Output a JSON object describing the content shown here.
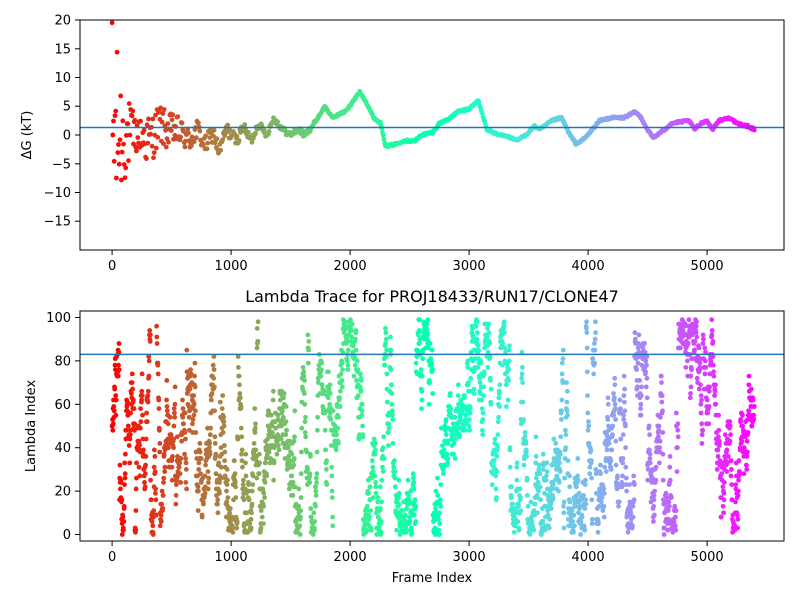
{
  "chart_data": [
    {
      "type": "scatter",
      "title": "",
      "xlabel": "",
      "ylabel": "ΔG (kT)",
      "xlim": [
        -270,
        5650
      ],
      "ylim": [
        -20,
        20
      ],
      "xticks": [
        "0",
        "1000",
        "2000",
        "3000",
        "4000",
        "5000"
      ],
      "yticks": [
        "−15",
        "−10",
        "−5",
        "0",
        "5",
        "10",
        "15",
        "20"
      ],
      "reference_line": 1.3,
      "reference_color": "#1f77b4",
      "colormap": "rainbow (red at frame 0 to violet at frame 5400)",
      "frames": 5400,
      "trace_anchors": [
        [
          240,
          0
        ],
        [
          320,
          -1
        ],
        [
          400,
          2
        ],
        [
          470,
          0.5
        ],
        [
          520,
          1
        ],
        [
          600,
          0
        ],
        [
          650,
          -1
        ],
        [
          720,
          1
        ],
        [
          780,
          -2
        ],
        [
          850,
          0.5
        ],
        [
          900,
          -3
        ],
        [
          960,
          1
        ],
        [
          1050,
          -1
        ],
        [
          1100,
          1.5
        ],
        [
          1170,
          -1
        ],
        [
          1230,
          2
        ],
        [
          1300,
          0
        ],
        [
          1360,
          3
        ],
        [
          1430,
          1
        ],
        [
          1500,
          0
        ],
        [
          1560,
          1
        ],
        [
          1620,
          0
        ],
        [
          1700,
          2
        ],
        [
          1790,
          5
        ],
        [
          1850,
          3
        ],
        [
          1950,
          4
        ],
        [
          2000,
          5
        ],
        [
          2080,
          7.5
        ],
        [
          2130,
          6
        ],
        [
          2200,
          3
        ],
        [
          2260,
          2
        ],
        [
          2300,
          -2
        ],
        [
          2400,
          -1.5
        ],
        [
          2450,
          -1
        ],
        [
          2550,
          -1
        ],
        [
          2600,
          0
        ],
        [
          2700,
          0.5
        ],
        [
          2750,
          2
        ],
        [
          2850,
          3
        ],
        [
          2900,
          4
        ],
        [
          3000,
          4.5
        ],
        [
          3080,
          6
        ],
        [
          3150,
          1
        ],
        [
          3250,
          0
        ],
        [
          3300,
          0
        ],
        [
          3400,
          -1
        ],
        [
          3480,
          0
        ],
        [
          3550,
          1.5
        ],
        [
          3600,
          1
        ],
        [
          3700,
          2.5
        ],
        [
          3780,
          3
        ],
        [
          3850,
          0
        ],
        [
          3900,
          -1.5
        ],
        [
          3950,
          -1
        ],
        [
          4000,
          0
        ],
        [
          4100,
          2.5
        ],
        [
          4200,
          3
        ],
        [
          4300,
          3
        ],
        [
          4400,
          4
        ],
        [
          4450,
          3
        ],
        [
          4500,
          1
        ],
        [
          4550,
          -0.5
        ],
        [
          4650,
          1
        ],
        [
          4700,
          2
        ],
        [
          4850,
          2.5
        ],
        [
          4900,
          1
        ],
        [
          4950,
          2
        ],
        [
          5000,
          2.5
        ],
        [
          5050,
          1
        ],
        [
          5100,
          2.5
        ],
        [
          5200,
          3
        ],
        [
          5250,
          2
        ],
        [
          5350,
          1.5
        ],
        [
          5400,
          1
        ]
      ]
    },
    {
      "type": "scatter",
      "title": "Lambda Trace for PROJ18433/RUN17/CLONE47",
      "xlabel": "Frame Index",
      "ylabel": "Lambda Index",
      "xlim": [
        -270,
        5650
      ],
      "ylim": [
        -3,
        103
      ],
      "xticks": [
        "0",
        "1000",
        "2000",
        "3000",
        "4000",
        "5000"
      ],
      "yticks": [
        "0",
        "20",
        "40",
        "60",
        "80",
        "100"
      ],
      "reference_line": 83,
      "reference_color": "#1f77b4",
      "colormap": "rainbow (red at frame 0 to violet at frame 5400)",
      "frames": 5400,
      "lambda_range": [
        0,
        99
      ]
    }
  ]
}
